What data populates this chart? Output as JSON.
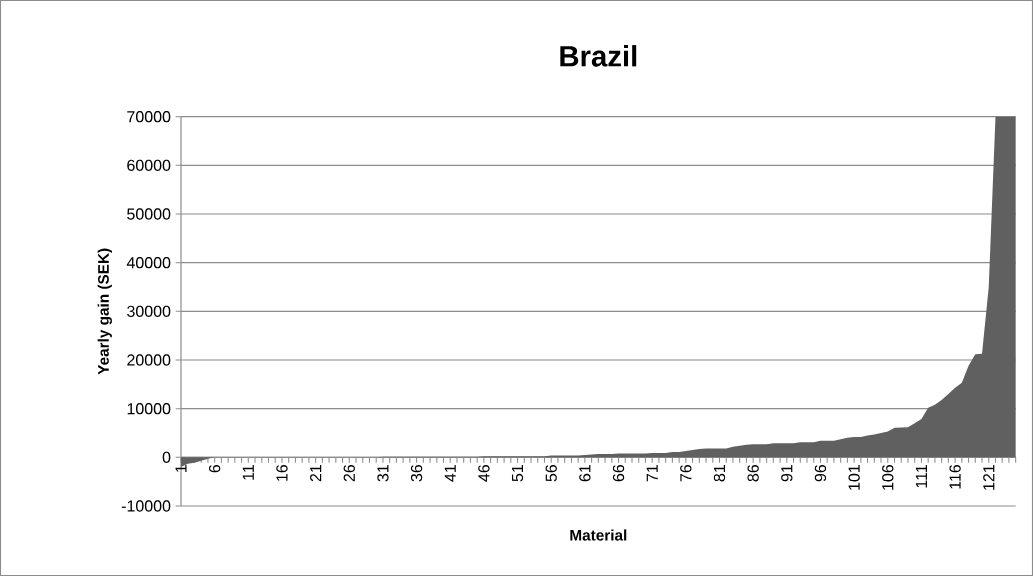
{
  "chart_data": {
    "type": "area",
    "title": "Brazil",
    "xlabel": "Material",
    "ylabel": "Yearly gain (SEK)",
    "categories": [
      "1",
      null,
      null,
      null,
      null,
      "6",
      null,
      null,
      null,
      null,
      "11",
      null,
      null,
      null,
      null,
      "16",
      null,
      null,
      null,
      null,
      "21",
      null,
      null,
      null,
      null,
      "26",
      null,
      null,
      null,
      null,
      "31",
      null,
      null,
      null,
      null,
      "36",
      null,
      null,
      null,
      null,
      "41",
      null,
      null,
      null,
      null,
      "46",
      null,
      null,
      null,
      null,
      "51",
      null,
      null,
      null,
      null,
      "56",
      null,
      null,
      null,
      null,
      "61",
      null,
      null,
      null,
      null,
      "66",
      null,
      null,
      null,
      null,
      "71",
      null,
      null,
      null,
      null,
      "76",
      null,
      null,
      null,
      null,
      "81",
      null,
      null,
      null,
      null,
      "86",
      null,
      null,
      null,
      null,
      "91",
      null,
      null,
      null,
      null,
      "96",
      null,
      null,
      null,
      null,
      "101",
      null,
      null,
      null,
      null,
      "106",
      null,
      null,
      null,
      null,
      "111",
      null,
      null,
      null,
      null,
      "116",
      null,
      null,
      null,
      null,
      "121",
      null,
      null,
      null,
      null
    ],
    "values": [
      -2000,
      -1300,
      -1100,
      -700,
      -300,
      0,
      0,
      0,
      0,
      0,
      0,
      0,
      0,
      0,
      0,
      0,
      0,
      0,
      0,
      0,
      0,
      0,
      0,
      0,
      0,
      0,
      0,
      0,
      0,
      0,
      100,
      100,
      100,
      100,
      100,
      100,
      100,
      100,
      100,
      100,
      100,
      100,
      100,
      100,
      100,
      200,
      200,
      200,
      200,
      200,
      200,
      200,
      200,
      200,
      200,
      400,
      400,
      400,
      400,
      400,
      500,
      600,
      700,
      700,
      700,
      800,
      800,
      800,
      800,
      800,
      900,
      900,
      900,
      1100,
      1100,
      1300,
      1500,
      1700,
      1800,
      1800,
      1800,
      1800,
      2200,
      2400,
      2600,
      2700,
      2700,
      2700,
      2900,
      2900,
      2900,
      2900,
      3100,
      3100,
      3100,
      3400,
      3400,
      3400,
      3700,
      4000,
      4200,
      4200,
      4500,
      4700,
      5000,
      5300,
      6100,
      6150,
      6200,
      7000,
      7900,
      10200,
      10800,
      11800,
      13000,
      14300,
      15300,
      18800,
      21200,
      21300,
      35000,
      70000,
      70000,
      70000,
      70000
    ],
    "color": "#606060",
    "ylim": [
      -10000,
      70000
    ],
    "yticks": [
      -10000,
      0,
      10000,
      20000,
      30000,
      40000,
      50000,
      60000,
      70000
    ],
    "grid": "y"
  }
}
